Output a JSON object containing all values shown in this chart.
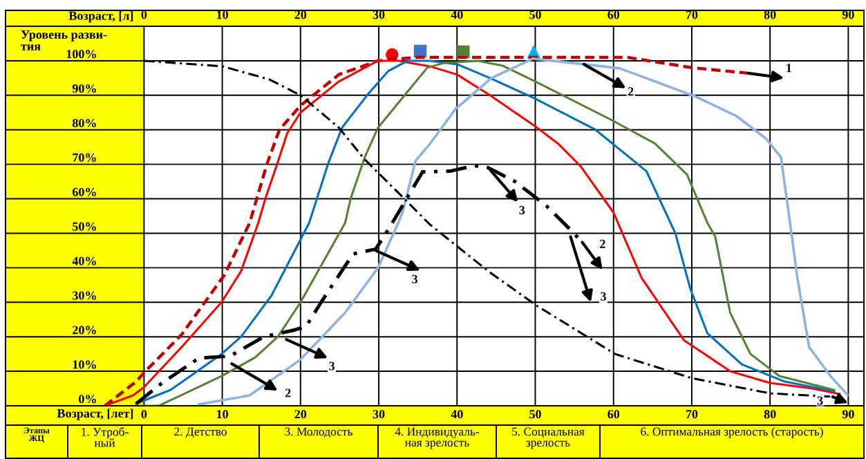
{
  "chart_data": {
    "type": "line",
    "xlabel": "Возраст, [лет]",
    "x2label": "Возраст, [л]",
    "ylabel": "Уровень разви-\nтия",
    "xlim": [
      -17.7,
      92
    ],
    "xticks": [
      0,
      10,
      20,
      30,
      40,
      50,
      60,
      70,
      80,
      90
    ],
    "bands": [
      {
        "axis": "x",
        "from": -17.7,
        "to": 0,
        "color": "#ffff00"
      }
    ],
    "x2lim": [
      -17.7,
      92
    ],
    "x2ticks": [
      0,
      10,
      20,
      30,
      40,
      50,
      60,
      70,
      80,
      90
    ],
    "ylim": [
      0,
      110
    ],
    "yticks": [
      {
        "value": 0,
        "label": "0%"
      },
      {
        "value": 10,
        "label": "10%"
      },
      {
        "value": 20,
        "label": "20%"
      },
      {
        "value": 30,
        "label": "30%"
      },
      {
        "value": 40,
        "label": "40%"
      },
      {
        "value": 50,
        "label": "50%"
      },
      {
        "value": 60,
        "label": "60%"
      },
      {
        "value": 70,
        "label": "70%"
      },
      {
        "value": 80,
        "label": "80%"
      },
      {
        "value": 90,
        "label": "90%"
      },
      {
        "value": 100,
        "label": "100%"
      }
    ],
    "grid": true,
    "legend": false,
    "series": [
      {
        "color": "#c00000",
        "line_style": "dashed",
        "marker": "none",
        "x": [
          -5,
          -1,
          0,
          4.8,
          10.3,
          13.5,
          15.7,
          17.3,
          20,
          24.9,
          29.9,
          35,
          50.4,
          61.7,
          70,
          77.2
        ],
        "values": [
          0,
          7,
          9.6,
          20.6,
          38,
          53,
          70,
          80,
          87,
          96,
          100,
          101,
          101,
          101,
          98,
          96.4
        ]
      },
      {
        "color": "#ff0000",
        "line_style": "solid",
        "marker": "none",
        "x": [
          -5,
          -1.4,
          0,
          4.8,
          9.9,
          12.4,
          14.6,
          15.5,
          17,
          18.3,
          20,
          24.9,
          29.9,
          32.5,
          36.5,
          40,
          44.2,
          50,
          52.9,
          55.8,
          60,
          63.6,
          69,
          74.9,
          80,
          85.4,
          88.9
        ],
        "values": [
          0,
          3,
          5.4,
          17,
          30,
          39,
          53,
          60,
          70,
          79,
          85,
          94,
          100,
          100,
          98.4,
          96,
          90,
          81,
          76,
          69.4,
          56,
          37,
          19,
          10,
          6.6,
          5,
          3.4
        ]
      },
      {
        "color": "#0070c0",
        "line_style": "solid",
        "marker": "none",
        "x": [
          -1,
          3.4,
          9.9,
          12.4,
          16.3,
          21.1,
          23.5,
          25.3,
          28.5,
          31.2,
          33.7,
          36.5,
          40,
          44.2,
          50,
          57.7,
          64.2,
          67.9,
          69.8,
          72,
          76.4,
          81.9,
          88.2
        ],
        "values": [
          0.6,
          4.6,
          15,
          20,
          32,
          53,
          70,
          80.6,
          90,
          97,
          100,
          100,
          99,
          95,
          89,
          80,
          68,
          50,
          34,
          21,
          12,
          7,
          4.2
        ]
      },
      {
        "color": "#548235",
        "line_style": "solid",
        "marker": "none",
        "x": [
          -0.3,
          1.9,
          9.9,
          14.2,
          17.1,
          20,
          25.7,
          26.4,
          28.2,
          29.9,
          32.8,
          36.2,
          38.4,
          42.7,
          45.8,
          50,
          59.6,
          65.3,
          69.4,
          72,
          73,
          74.9,
          77.5,
          81.2,
          88.2
        ],
        "values": [
          0,
          0,
          8.6,
          14,
          20,
          30,
          53,
          60,
          72,
          80.6,
          88.6,
          98,
          99.4,
          100,
          98.6,
          94,
          83,
          76,
          67,
          53,
          49,
          27,
          15,
          8.6,
          4.6
        ]
      },
      {
        "color": "#8db3e2",
        "line_style": "solid",
        "marker": "none",
        "x": [
          7,
          13.5,
          20,
          25.7,
          29.9,
          32.5,
          33.1,
          34.7,
          36.5,
          39.8,
          44.4,
          49.7,
          56.2,
          60.8,
          70.5,
          75.7,
          79.5,
          81.4,
          82.8,
          83.5,
          85,
          87.8,
          89.9
        ],
        "values": [
          0.4,
          3,
          13.4,
          27,
          40,
          53,
          56.6,
          71,
          75.8,
          86,
          95,
          100.6,
          99,
          97.8,
          89.6,
          84,
          77.4,
          72,
          49,
          37,
          17,
          8.4,
          3.2
        ]
      },
      {
        "color": "#000000",
        "line_style": "dashdot",
        "marker": "none",
        "x": [
          0,
          10,
          16,
          20,
          24.9,
          28.2,
          33,
          36.5,
          44,
          50.2,
          60.2,
          70,
          80,
          88.2
        ],
        "values": [
          100,
          98.4,
          94.6,
          90,
          80.6,
          71.4,
          60.6,
          52.6,
          39,
          29,
          15,
          8,
          3.6,
          2.6
        ]
      },
      {
        "color": "#000000",
        "line_style": "dashdot",
        "marker": "none",
        "x": [
          -1,
          2.3,
          7,
          11,
          15.3,
          19.3,
          20.7,
          22.8,
          26.7,
          29.6,
          31.2,
          35.6,
          39.1,
          42.2,
          44,
          47.4,
          51.4,
          54.5,
          56
        ],
        "values": [
          0.6,
          6.6,
          13.8,
          14.4,
          20,
          22,
          23,
          30.6,
          44,
          45.4,
          51,
          67.8,
          68,
          69.6,
          69,
          65,
          58,
          51,
          47.4
        ]
      },
      {
        "type": "scatter",
        "color": "#ff0000",
        "marker": "circle",
        "x": [
          31.7
        ],
        "values": [
          101.8
        ]
      },
      {
        "type": "scatter",
        "color": "#4472c4",
        "marker": "square",
        "x": [
          35.3
        ],
        "values": [
          102.8
        ]
      },
      {
        "type": "scatter",
        "color": "#548235",
        "marker": "square",
        "x": [
          40.8
        ],
        "values": [
          102.6
        ]
      },
      {
        "type": "scatter",
        "color": "#00b0f0",
        "marker": "triangle",
        "x": [
          49.8
        ],
        "values": [
          102.6
        ]
      }
    ],
    "annotations": [
      "1",
      {
        "text": "2",
        "x": 56.2,
        "y": 99
      },
      {
        "text": "3",
        "x": 44,
        "y": 69
      },
      "2",
      "3",
      {
        "text": "3",
        "x": 29.6,
        "y": 45
      },
      "3",
      "2",
      "3",
      "Этапы\nЖЦ",
      "1. Утроб-\nный",
      "2. Детство",
      "3. Молодость",
      "4. Индивидуаль-\nная зрелость",
      "5. Социальная\nзрелость",
      "6. Оптимальная зрелость (старость)"
    ]
  }
}
